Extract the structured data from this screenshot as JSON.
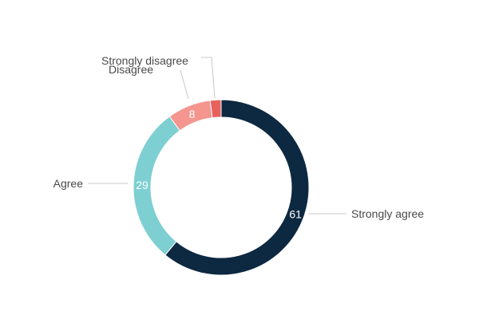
{
  "chart_data": {
    "type": "pie",
    "donut": true,
    "categories": [
      "Strongly agree",
      "Agree",
      "Disagree",
      "Strongly disagree"
    ],
    "values": [
      61,
      29,
      8,
      2
    ],
    "value_labels": [
      "61",
      "29",
      "8",
      ""
    ],
    "colors": [
      "#0d2841",
      "#7dcfd2",
      "#f4968f",
      "#e8625c"
    ],
    "title": "",
    "legend": "none"
  }
}
